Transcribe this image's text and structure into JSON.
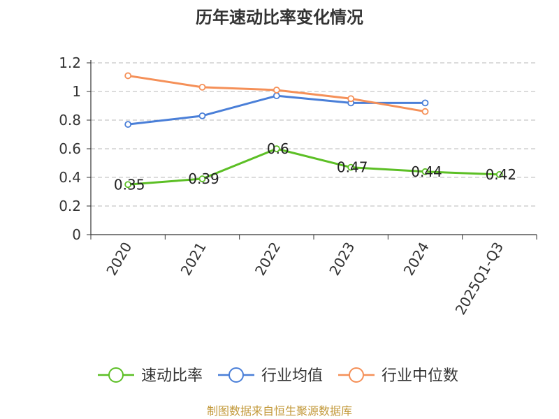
{
  "chart_data": {
    "type": "line",
    "title": "历年速动比率变化情况",
    "categories": [
      "2020",
      "2021",
      "2022",
      "2023",
      "2024",
      "2025Q1-Q3"
    ],
    "ylim": [
      0,
      1.2
    ],
    "yticks": [
      "0",
      "0.2",
      "0.4",
      "0.6",
      "0.8",
      "1",
      "1.2"
    ],
    "grid": true,
    "legend_position": "bottom",
    "series": [
      {
        "name": "速动比率",
        "color": "#5cbf25",
        "values": [
          0.35,
          0.39,
          0.6,
          0.47,
          0.44,
          0.42
        ],
        "labels": [
          "0.35",
          "0.39",
          "0.6",
          "0.47",
          "0.44",
          "0.42"
        ]
      },
      {
        "name": "行业均值",
        "color": "#4a7fd8",
        "values": [
          0.77,
          0.83,
          0.97,
          0.92,
          0.92,
          null
        ]
      },
      {
        "name": "行业中位数",
        "color": "#f59058",
        "values": [
          1.11,
          1.03,
          1.01,
          0.95,
          0.86,
          null
        ]
      }
    ]
  },
  "source": "制图数据来自恒生聚源数据库"
}
